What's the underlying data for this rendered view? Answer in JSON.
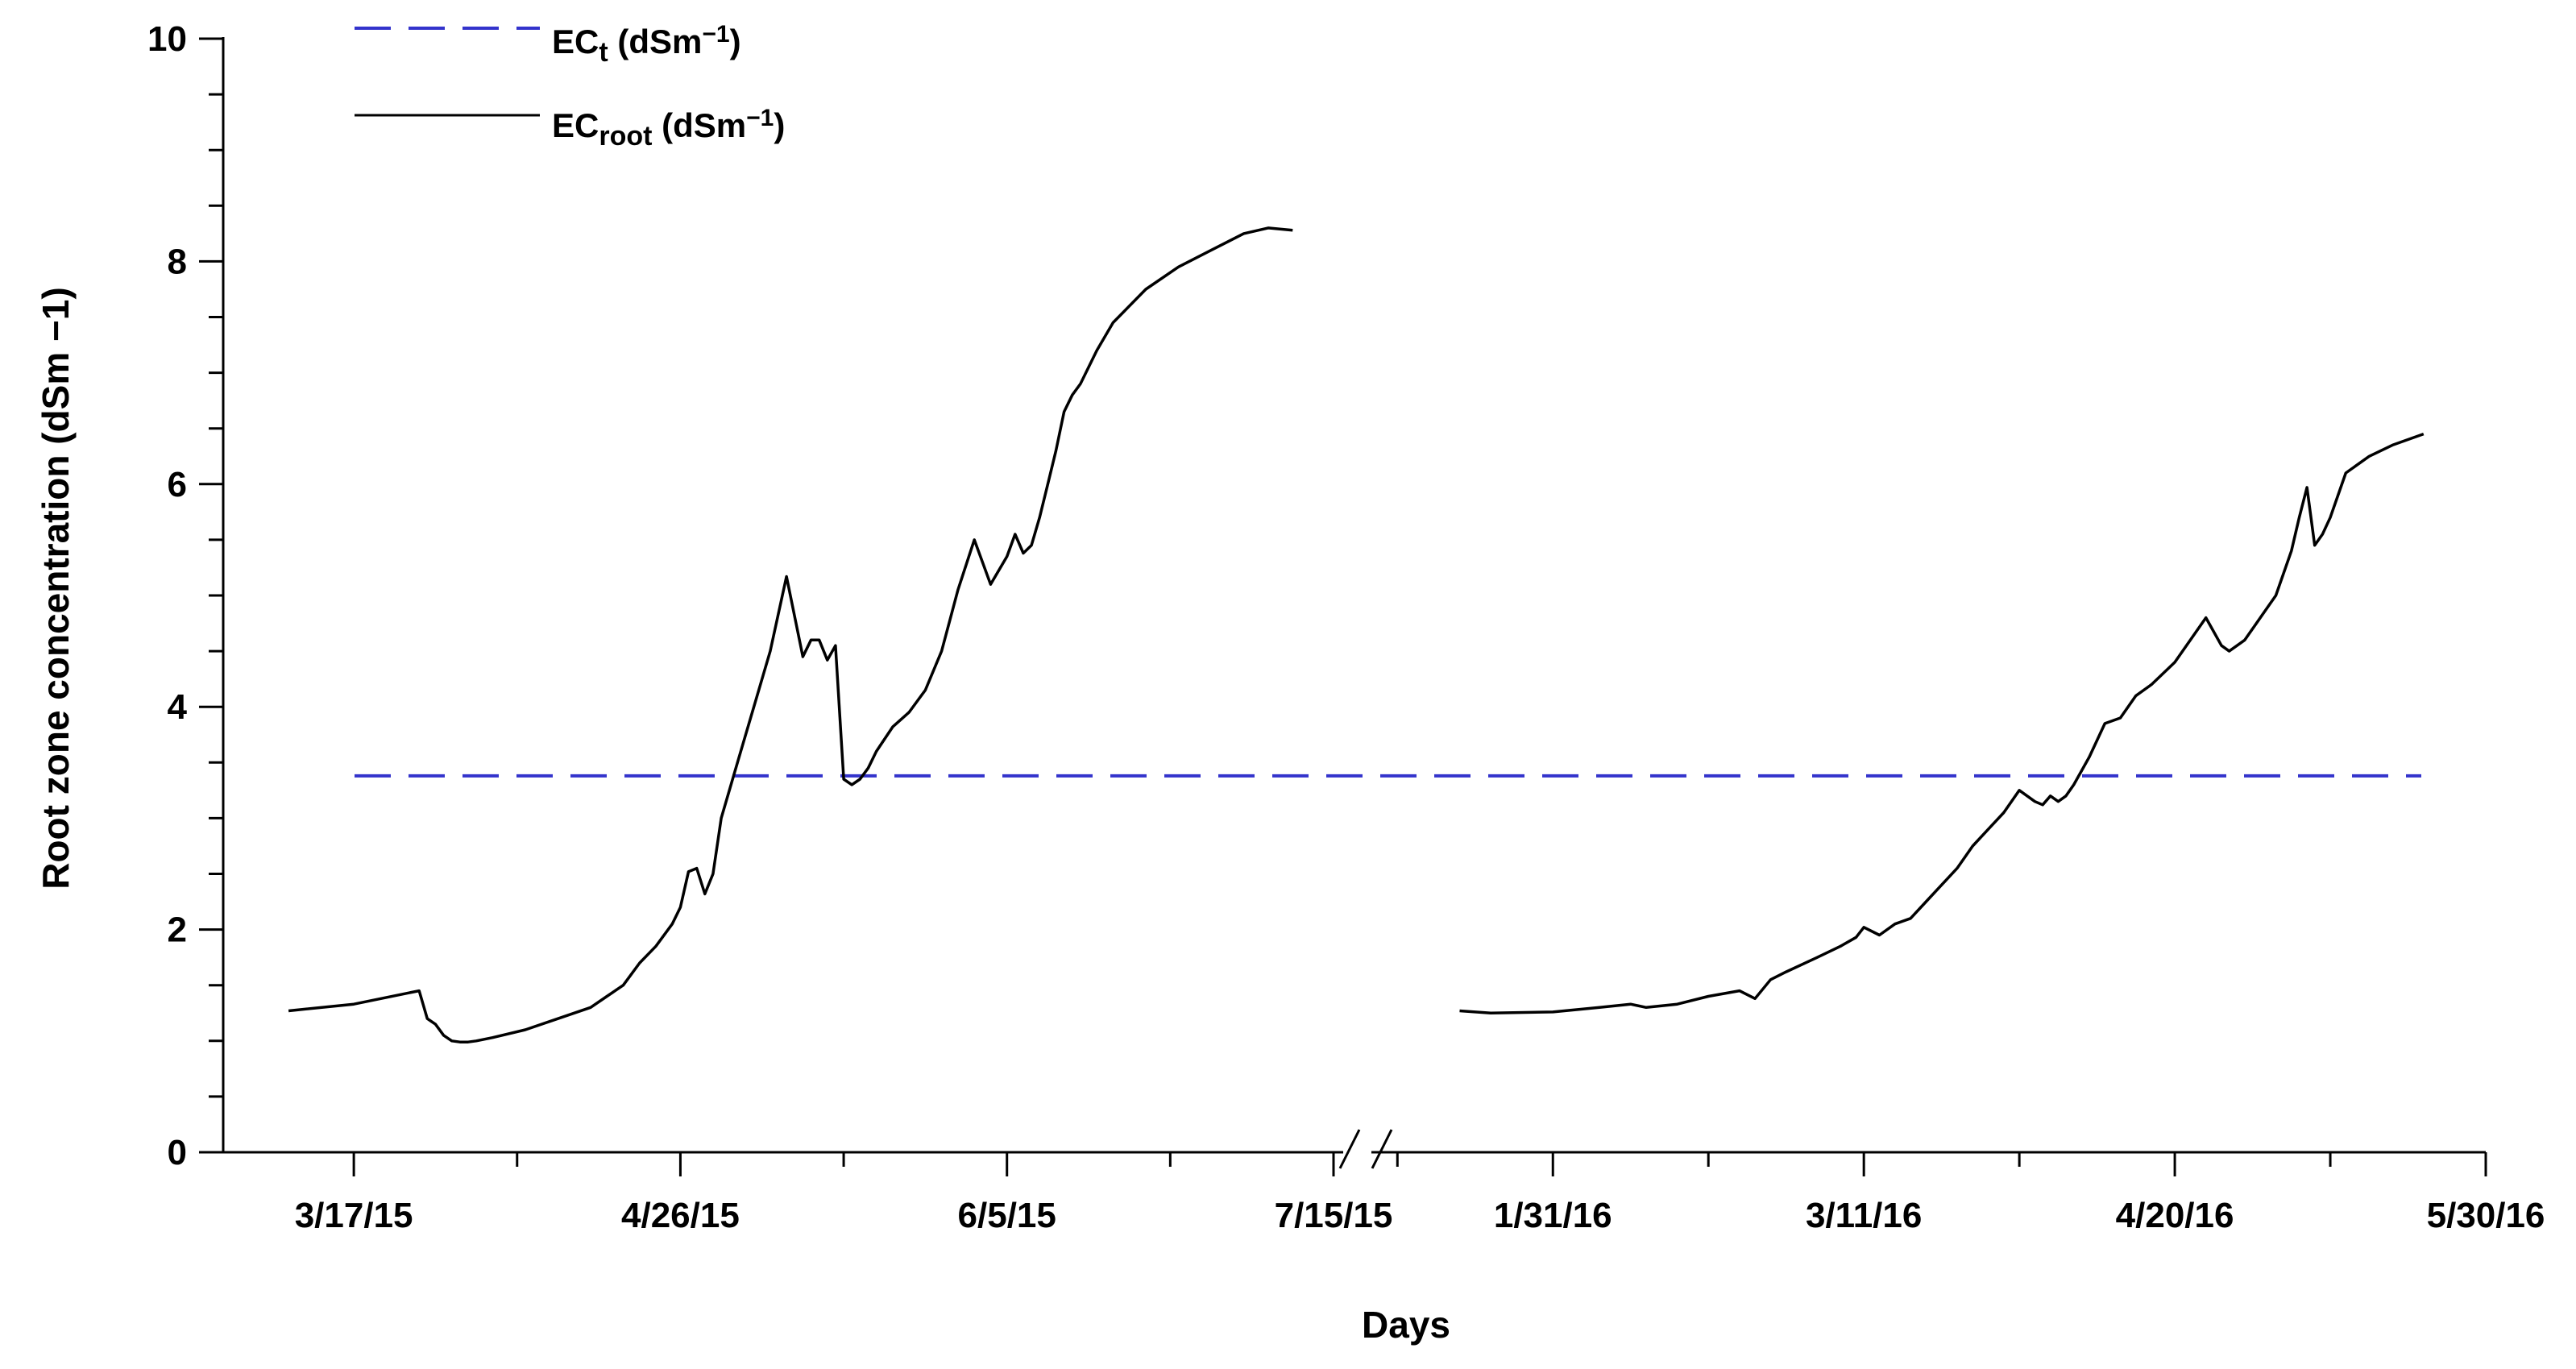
{
  "chart_data": {
    "type": "line",
    "xlabel": "Days",
    "ylabel": "Root zone concentration (dSm −1)",
    "ylim": [
      0,
      10
    ],
    "yticks": [
      "0",
      "2",
      "4",
      "6",
      "8",
      "10"
    ],
    "axis_break": "between 7/15/15 and 1/31/16",
    "panels": [
      {
        "xlim": [
          "2015-03-01",
          "2015-07-15"
        ],
        "xticks": [
          "3/17/15",
          "4/26/15",
          "6/5/15",
          "7/15/15"
        ],
        "xtick_dates": [
          "2015-03-17",
          "2015-04-26",
          "2015-06-05",
          "2015-07-15"
        ]
      },
      {
        "xlim": [
          "2016-01-09",
          "2016-05-30"
        ],
        "xticks": [
          "1/31/16",
          "3/11/16",
          "4/20/16",
          "5/30/16"
        ],
        "xtick_dates": [
          "2016-01-31",
          "2016-03-11",
          "2016-04-20",
          "2016-05-30"
        ]
      }
    ],
    "legend": {
      "position": "top-left",
      "entries": [
        {
          "base": "EC",
          "sub": "t",
          "unit": " (dSm",
          "sup": "−1",
          "close": ")",
          "style": "dashed",
          "color": "#3333cc"
        },
        {
          "base": "EC",
          "sub": "root",
          "unit": " (dSm",
          "sup": "−1",
          "close": ")",
          "style": "solid",
          "color": "#000000"
        }
      ]
    },
    "series": [
      {
        "name": "ECt (dSm−1)",
        "style": "dashed",
        "color": "#3333cc",
        "y": 3.38
      },
      {
        "name": "ECroot (dSm−1)",
        "style": "solid",
        "color": "#000000",
        "segments": [
          {
            "x": [
              "2015-03-09",
              "2015-03-17",
              "2015-03-25",
              "2015-03-26",
              "2015-03-27",
              "2015-03-28",
              "2015-03-29",
              "2015-03-30",
              "2015-03-31",
              "2015-04-01",
              "2015-04-03",
              "2015-04-07",
              "2015-04-11",
              "2015-04-15",
              "2015-04-17",
              "2015-04-19",
              "2015-04-21",
              "2015-04-23",
              "2015-04-25",
              "2015-04-26",
              "2015-04-27",
              "2015-04-28",
              "2015-04-29",
              "2015-04-30",
              "2015-05-01",
              "2015-05-03",
              "2015-05-05",
              "2015-05-07",
              "2015-05-09",
              "2015-05-11",
              "2015-05-12",
              "2015-05-13",
              "2015-05-14",
              "2015-05-15",
              "2015-05-16",
              "2015-05-17",
              "2015-05-18",
              "2015-05-19",
              "2015-05-20",
              "2015-05-22",
              "2015-05-24",
              "2015-05-26",
              "2015-05-28",
              "2015-05-30",
              "2015-06-01",
              "2015-06-03",
              "2015-06-05",
              "2015-06-06",
              "2015-06-07",
              "2015-06-08",
              "2015-06-09",
              "2015-06-10",
              "2015-06-11",
              "2015-06-12",
              "2015-06-13",
              "2015-06-14",
              "2015-06-16",
              "2015-06-18",
              "2015-06-22",
              "2015-06-26",
              "2015-06-30",
              "2015-07-04",
              "2015-07-07",
              "2015-07-10"
            ],
            "y": [
              1.27,
              1.33,
              1.45,
              1.2,
              1.15,
              1.05,
              1.0,
              0.99,
              0.99,
              1.0,
              1.03,
              1.1,
              1.2,
              1.3,
              1.4,
              1.5,
              1.7,
              1.85,
              2.05,
              2.2,
              2.52,
              2.55,
              2.32,
              2.5,
              3.0,
              3.5,
              4.0,
              4.5,
              5.17,
              4.45,
              4.6,
              4.6,
              4.42,
              4.55,
              3.35,
              3.3,
              3.35,
              3.45,
              3.6,
              3.82,
              3.95,
              4.15,
              4.5,
              5.05,
              5.5,
              5.1,
              5.35,
              5.55,
              5.38,
              5.45,
              5.7,
              6.0,
              6.3,
              6.65,
              6.8,
              6.9,
              7.2,
              7.45,
              7.75,
              7.95,
              8.1,
              8.25,
              8.3,
              8.28
            ],
            "x_display": [
              "3/9/15",
              "3/17/15",
              "3/25/15",
              "3/26/15",
              "3/27/15",
              "3/28/15",
              "3/29/15",
              "3/30/15",
              "3/31/15",
              "4/1/15",
              "4/3/15",
              "4/7/15",
              "4/11/15",
              "4/15/15",
              "4/17/15",
              "4/19/15",
              "4/21/15",
              "4/23/15",
              "4/25/15",
              "4/26/15",
              "4/27/15",
              "4/28/15",
              "4/29/15",
              "4/30/15",
              "5/1/15",
              "5/3/15",
              "5/5/15",
              "5/7/15",
              "5/9/15",
              "5/11/15",
              "5/12/15",
              "5/13/15",
              "5/14/15",
              "5/15/15",
              "5/16/15",
              "5/17/15",
              "5/18/15",
              "5/19/15",
              "5/20/15",
              "5/22/15",
              "5/24/15",
              "5/26/15",
              "5/28/15",
              "5/30/15",
              "6/1/15",
              "6/3/15",
              "6/5/15",
              "6/6/15",
              "6/7/15",
              "6/8/15",
              "6/9/15",
              "6/10/15",
              "6/11/15",
              "6/12/15",
              "6/13/15",
              "6/14/15",
              "6/16/15",
              "6/18/15",
              "6/22/15",
              "6/26/15",
              "6/30/15",
              "7/4/15",
              "7/7/15",
              "7/10/15"
            ]
          },
          {
            "x": [
              "2016-01-19",
              "2016-01-23",
              "2016-01-31",
              "2016-02-06",
              "2016-02-10",
              "2016-02-12",
              "2016-02-16",
              "2016-02-20",
              "2016-02-24",
              "2016-02-26",
              "2016-02-28",
              "2016-03-01",
              "2016-03-05",
              "2016-03-08",
              "2016-03-10",
              "2016-03-11",
              "2016-03-13",
              "2016-03-15",
              "2016-03-17",
              "2016-03-19",
              "2016-03-21",
              "2016-03-23",
              "2016-03-25",
              "2016-03-27",
              "2016-03-29",
              "2016-03-31",
              "2016-04-02",
              "2016-04-03",
              "2016-04-04",
              "2016-04-05",
              "2016-04-06",
              "2016-04-07",
              "2016-04-09",
              "2016-04-11",
              "2016-04-13",
              "2016-04-15",
              "2016-04-17",
              "2016-04-20",
              "2016-04-22",
              "2016-04-24",
              "2016-04-26",
              "2016-04-27",
              "2016-04-28",
              "2016-04-29",
              "2016-05-01",
              "2016-05-03",
              "2016-05-05",
              "2016-05-06",
              "2016-05-07",
              "2016-05-08",
              "2016-05-09",
              "2016-05-10",
              "2016-05-12",
              "2016-05-15",
              "2016-05-18",
              "2016-05-22"
            ],
            "y": [
              1.27,
              1.25,
              1.26,
              1.3,
              1.33,
              1.3,
              1.33,
              1.4,
              1.45,
              1.38,
              1.55,
              1.62,
              1.75,
              1.85,
              1.93,
              2.02,
              1.95,
              2.05,
              2.1,
              2.25,
              2.4,
              2.55,
              2.75,
              2.9,
              3.05,
              3.25,
              3.15,
              3.12,
              3.2,
              3.15,
              3.2,
              3.3,
              3.55,
              3.85,
              3.9,
              4.1,
              4.2,
              4.4,
              4.6,
              4.8,
              4.55,
              4.5,
              4.55,
              4.6,
              4.8,
              5.0,
              5.4,
              5.7,
              5.97,
              5.45,
              5.55,
              5.7,
              6.1,
              6.25,
              6.35,
              6.45
            ],
            "x_display": [
              "1/19/16",
              "1/23/16",
              "1/31/16",
              "2/6/16",
              "2/10/16",
              "2/12/16",
              "2/16/16",
              "2/20/16",
              "2/24/16",
              "2/26/16",
              "2/28/16",
              "3/1/16",
              "3/5/16",
              "3/8/16",
              "3/10/16",
              "3/11/16",
              "3/13/16",
              "3/15/16",
              "3/17/16",
              "3/19/16",
              "3/21/16",
              "3/23/16",
              "3/25/16",
              "3/27/16",
              "3/29/16",
              "3/31/16",
              "4/2/16",
              "4/3/16",
              "4/4/16",
              "4/5/16",
              "4/6/16",
              "4/7/16",
              "4/9/16",
              "4/11/16",
              "4/13/16",
              "4/15/16",
              "4/17/16",
              "4/20/16",
              "4/22/16",
              "4/24/16",
              "4/26/16",
              "4/27/16",
              "4/28/16",
              "4/29/16",
              "5/1/16",
              "5/3/16",
              "5/5/16",
              "5/6/16",
              "5/7/16",
              "5/8/16",
              "5/9/16",
              "5/10/16",
              "5/12/16",
              "5/15/16",
              "5/18/16",
              "5/22/16"
            ]
          }
        ]
      }
    ]
  }
}
